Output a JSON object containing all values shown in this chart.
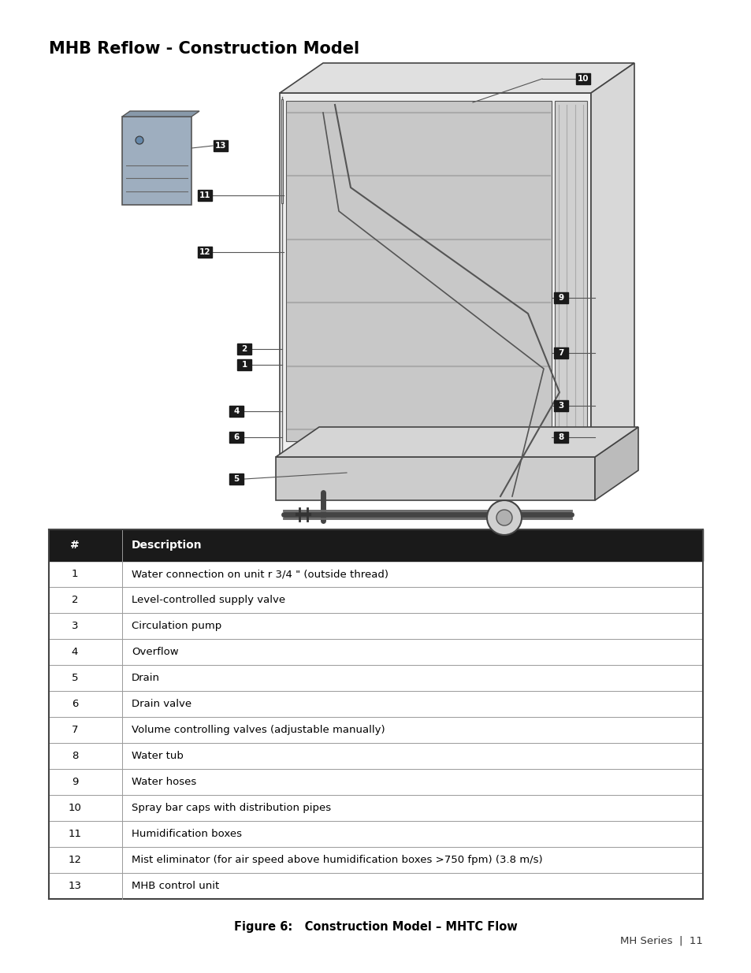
{
  "title": "MHB Reflow - Construction Model",
  "title_fontsize": 15,
  "title_fontweight": "bold",
  "table_rows": [
    [
      "1",
      "Water connection on unit r 3/4 \" (outside thread)"
    ],
    [
      "2",
      "Level-controlled supply valve"
    ],
    [
      "3",
      "Circulation pump"
    ],
    [
      "4",
      "Overflow"
    ],
    [
      "5",
      "Drain"
    ],
    [
      "6",
      "Drain valve"
    ],
    [
      "7",
      "Volume controlling valves (adjustable manually)"
    ],
    [
      "8",
      "Water tub"
    ],
    [
      "9",
      "Water hoses"
    ],
    [
      "10",
      "Spray bar caps with distribution pipes"
    ],
    [
      "11",
      "Humidification boxes"
    ],
    [
      "12",
      "Mist eliminator (for air speed above humidification boxes >750 fpm) (3.8 m/s)"
    ],
    [
      "13",
      "MHB control unit"
    ]
  ],
  "figure_caption": "Figure 6:   Construction Model – MHTC Flow",
  "footer_text": "MH Series  |  11",
  "bg_color": "#ffffff",
  "header_bg": "#1a1a1a",
  "header_text_color": "#ffffff",
  "row_line_color": "#999999",
  "table_border_color": "#444444"
}
